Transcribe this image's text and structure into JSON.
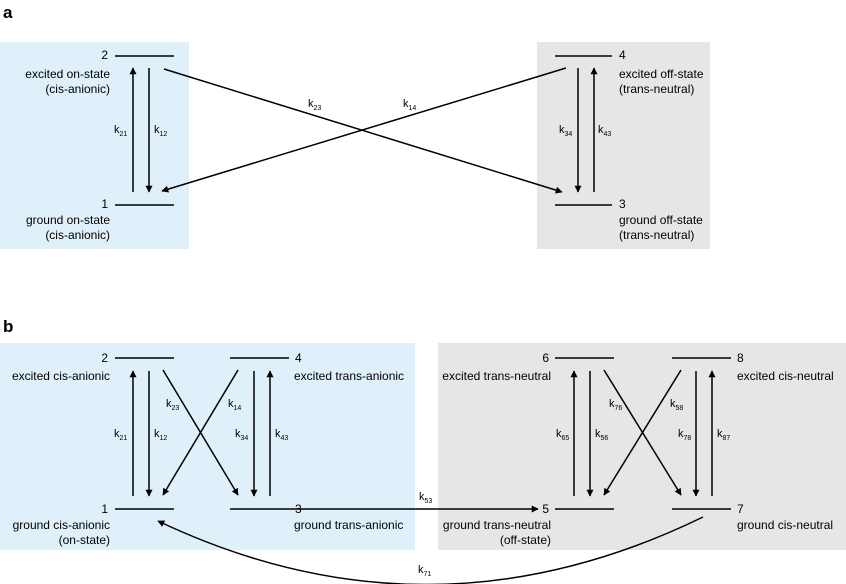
{
  "panel_a": {
    "label": "a",
    "states": {
      "s1": {
        "num": "1",
        "line1": "ground on-state",
        "line2": "(cis-anionic)"
      },
      "s2": {
        "num": "2",
        "line1": "excited on-state",
        "line2": "(cis-anionic)"
      },
      "s3": {
        "num": "3",
        "line1": "ground off-state",
        "line2": "(trans-neutral)"
      },
      "s4": {
        "num": "4",
        "line1": "excited off-state",
        "line2": "(trans-neutral)"
      }
    },
    "rates": {
      "k21": {
        "k": "k",
        "sub": "21"
      },
      "k12": {
        "k": "k",
        "sub": "12"
      },
      "k23": {
        "k": "k",
        "sub": "23"
      },
      "k14": {
        "k": "k",
        "sub": "14"
      },
      "k34": {
        "k": "k",
        "sub": "34"
      },
      "k43": {
        "k": "k",
        "sub": "43"
      }
    }
  },
  "panel_b": {
    "label": "b",
    "states": {
      "s1": {
        "num": "1",
        "line1": "ground cis-anionic",
        "line2": "(on-state)"
      },
      "s2": {
        "num": "2",
        "line1": "excited cis-anionic"
      },
      "s3": {
        "num": "3",
        "line1": "ground trans-anionic"
      },
      "s4": {
        "num": "4",
        "line1": "excited trans-anionic"
      },
      "s5": {
        "num": "5",
        "line1": "ground trans-neutral",
        "line2": "(off-state)"
      },
      "s6": {
        "num": "6",
        "line1": "excited trans-neutral"
      },
      "s7": {
        "num": "7",
        "line1": "ground cis-neutral"
      },
      "s8": {
        "num": "8",
        "line1": "excited cis-neutral"
      }
    },
    "rates": {
      "k21": {
        "k": "k",
        "sub": "21"
      },
      "k12": {
        "k": "k",
        "sub": "12"
      },
      "k23": {
        "k": "k",
        "sub": "23"
      },
      "k14": {
        "k": "k",
        "sub": "14"
      },
      "k34": {
        "k": "k",
        "sub": "34"
      },
      "k43": {
        "k": "k",
        "sub": "43"
      },
      "k53": {
        "k": "k",
        "sub": "53"
      },
      "k65": {
        "k": "k",
        "sub": "65"
      },
      "k56": {
        "k": "k",
        "sub": "56"
      },
      "k76": {
        "k": "k",
        "sub": "76"
      },
      "k58": {
        "k": "k",
        "sub": "58"
      },
      "k78": {
        "k": "k",
        "sub": "78"
      },
      "k87": {
        "k": "k",
        "sub": "87"
      },
      "k71": {
        "k": "k",
        "sub": "71"
      }
    }
  },
  "colors": {
    "on_panel": "#dff0fa",
    "off_panel": "#e6e6e6",
    "ink": "#000000"
  }
}
